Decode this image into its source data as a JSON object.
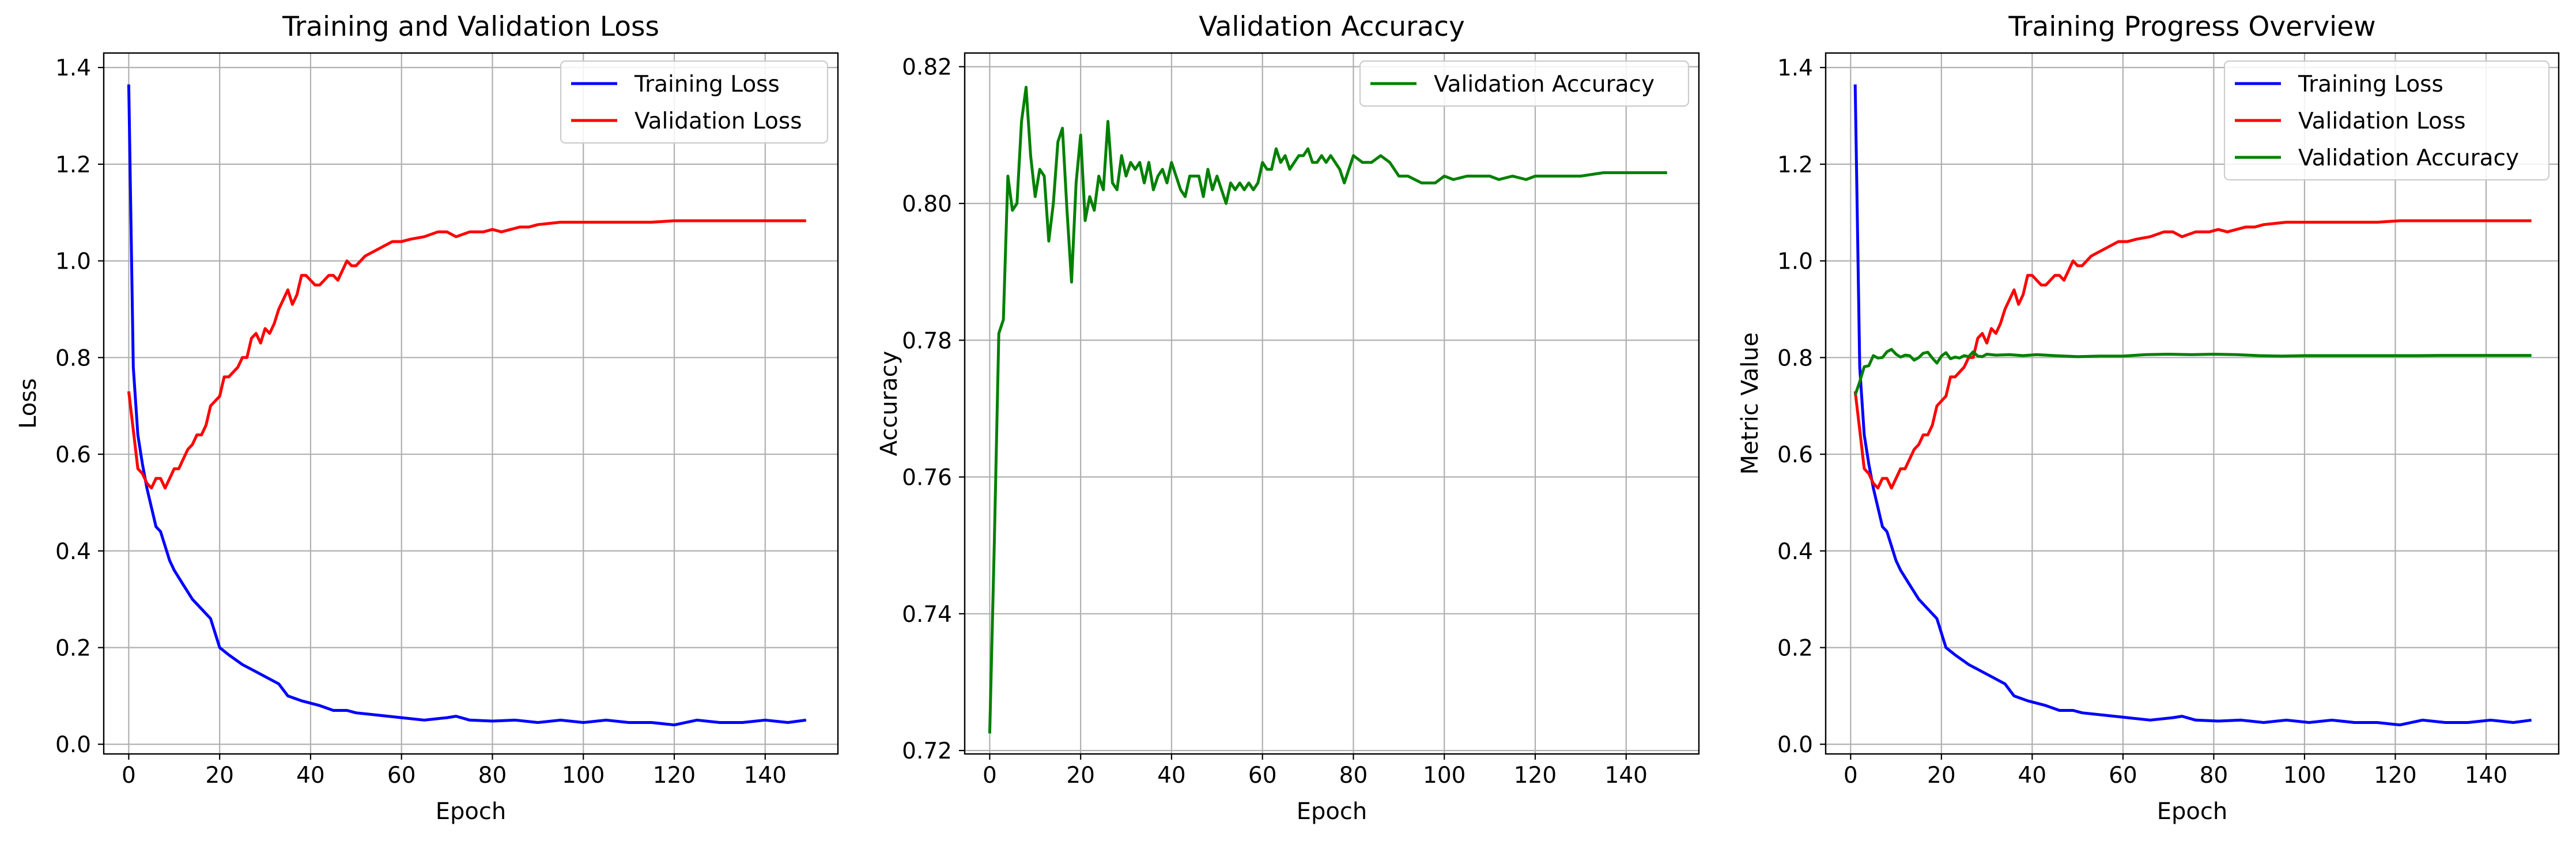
{
  "chart_data": [
    {
      "type": "line",
      "title": "Training and Validation Loss",
      "xlabel": "Epoch",
      "ylabel": "Loss",
      "xlim": [
        -5.5,
        156
      ],
      "ylim": [
        -0.02,
        1.43
      ],
      "xticks": [
        0,
        20,
        40,
        60,
        80,
        100,
        120,
        140
      ],
      "yticks": [
        0.0,
        0.2,
        0.4,
        0.6,
        0.8,
        1.0,
        1.2,
        1.4
      ],
      "tick_decimals": 1,
      "grid": true,
      "legend": "upper right",
      "series": [
        {
          "name": "Training Loss",
          "color": "#0000ff",
          "x": [
            0,
            1,
            2,
            3,
            4,
            5,
            6,
            7,
            8,
            9,
            10,
            12,
            14,
            16,
            18,
            20,
            22,
            25,
            28,
            30,
            33,
            35,
            38,
            40,
            42,
            45,
            48,
            50,
            55,
            60,
            65,
            70,
            72,
            75,
            80,
            85,
            90,
            95,
            100,
            105,
            110,
            115,
            120,
            125,
            130,
            135,
            140,
            145,
            149
          ],
          "y": [
            1.365,
            0.78,
            0.64,
            0.58,
            0.53,
            0.49,
            0.45,
            0.44,
            0.41,
            0.38,
            0.36,
            0.33,
            0.3,
            0.28,
            0.26,
            0.2,
            0.185,
            0.165,
            0.15,
            0.14,
            0.125,
            0.1,
            0.09,
            0.085,
            0.08,
            0.07,
            0.07,
            0.065,
            0.06,
            0.055,
            0.05,
            0.055,
            0.058,
            0.05,
            0.048,
            0.05,
            0.045,
            0.05,
            0.045,
            0.05,
            0.045,
            0.045,
            0.04,
            0.05,
            0.045,
            0.045,
            0.05,
            0.045,
            0.05
          ]
        },
        {
          "name": "Validation Loss",
          "color": "#ff0000",
          "x": [
            0,
            1,
            2,
            3,
            4,
            5,
            6,
            7,
            8,
            9,
            10,
            11,
            12,
            13,
            14,
            15,
            16,
            17,
            18,
            19,
            20,
            21,
            22,
            23,
            24,
            25,
            26,
            27,
            28,
            29,
            30,
            31,
            32,
            33,
            34,
            35,
            36,
            37,
            38,
            39,
            40,
            41,
            42,
            43,
            44,
            45,
            46,
            47,
            48,
            49,
            50,
            52,
            54,
            56,
            58,
            60,
            62,
            65,
            68,
            70,
            72,
            75,
            78,
            80,
            82,
            84,
            86,
            88,
            90,
            95,
            100,
            105,
            110,
            115,
            120,
            125,
            130,
            135,
            140,
            145,
            149
          ],
          "y": [
            0.73,
            0.65,
            0.57,
            0.56,
            0.54,
            0.53,
            0.55,
            0.55,
            0.53,
            0.55,
            0.57,
            0.57,
            0.59,
            0.61,
            0.62,
            0.64,
            0.64,
            0.66,
            0.7,
            0.71,
            0.72,
            0.76,
            0.76,
            0.77,
            0.78,
            0.8,
            0.8,
            0.84,
            0.85,
            0.83,
            0.86,
            0.85,
            0.87,
            0.9,
            0.92,
            0.94,
            0.91,
            0.93,
            0.97,
            0.97,
            0.96,
            0.95,
            0.95,
            0.96,
            0.97,
            0.97,
            0.96,
            0.98,
            1.0,
            0.99,
            0.99,
            1.01,
            1.02,
            1.03,
            1.04,
            1.04,
            1.045,
            1.05,
            1.06,
            1.06,
            1.05,
            1.06,
            1.06,
            1.065,
            1.06,
            1.065,
            1.07,
            1.07,
            1.075,
            1.08,
            1.08,
            1.08,
            1.08,
            1.08,
            1.083,
            1.083,
            1.083,
            1.083,
            1.083,
            1.083,
            1.083
          ]
        }
      ]
    },
    {
      "type": "line",
      "title": "Validation Accuracy",
      "xlabel": "Epoch",
      "ylabel": "Accuracy",
      "xlim": [
        -5.5,
        156
      ],
      "ylim": [
        0.7195,
        0.822
      ],
      "xticks": [
        0,
        20,
        40,
        60,
        80,
        100,
        120,
        140
      ],
      "yticks": [
        0.72,
        0.74,
        0.76,
        0.78,
        0.8,
        0.82
      ],
      "tick_decimals": 2,
      "grid": true,
      "legend": "upper right",
      "series": [
        {
          "name": "Validation Accuracy",
          "color": "#008000",
          "x": [
            0,
            1,
            2,
            3,
            4,
            5,
            6,
            7,
            8,
            9,
            10,
            11,
            12,
            13,
            14,
            15,
            16,
            17,
            18,
            19,
            20,
            21,
            22,
            23,
            24,
            25,
            26,
            27,
            28,
            29,
            30,
            31,
            32,
            33,
            34,
            35,
            36,
            37,
            38,
            39,
            40,
            41,
            42,
            43,
            44,
            45,
            46,
            47,
            48,
            49,
            50,
            51,
            52,
            53,
            54,
            55,
            56,
            57,
            58,
            59,
            60,
            61,
            62,
            63,
            64,
            65,
            66,
            67,
            68,
            69,
            70,
            71,
            72,
            73,
            74,
            75,
            76,
            77,
            78,
            79,
            80,
            82,
            84,
            86,
            88,
            90,
            92,
            95,
            98,
            100,
            102,
            105,
            108,
            110,
            112,
            115,
            118,
            120,
            125,
            130,
            135,
            140,
            145,
            149
          ],
          "y": [
            0.7225,
            0.75,
            0.781,
            0.783,
            0.804,
            0.799,
            0.8,
            0.812,
            0.817,
            0.807,
            0.801,
            0.805,
            0.804,
            0.7945,
            0.8,
            0.809,
            0.811,
            0.799,
            0.7885,
            0.803,
            0.81,
            0.7975,
            0.801,
            0.799,
            0.804,
            0.802,
            0.812,
            0.803,
            0.802,
            0.807,
            0.804,
            0.806,
            0.805,
            0.806,
            0.803,
            0.806,
            0.802,
            0.804,
            0.805,
            0.803,
            0.806,
            0.804,
            0.802,
            0.801,
            0.804,
            0.804,
            0.804,
            0.801,
            0.805,
            0.802,
            0.804,
            0.802,
            0.8,
            0.803,
            0.802,
            0.803,
            0.802,
            0.803,
            0.802,
            0.803,
            0.806,
            0.805,
            0.805,
            0.808,
            0.806,
            0.807,
            0.805,
            0.806,
            0.807,
            0.807,
            0.808,
            0.806,
            0.806,
            0.807,
            0.806,
            0.807,
            0.806,
            0.805,
            0.803,
            0.805,
            0.807,
            0.806,
            0.806,
            0.807,
            0.806,
            0.804,
            0.804,
            0.803,
            0.803,
            0.804,
            0.8035,
            0.804,
            0.804,
            0.804,
            0.8035,
            0.804,
            0.8035,
            0.804,
            0.804,
            0.804,
            0.8045,
            0.8045,
            0.8045,
            0.8045
          ]
        }
      ]
    },
    {
      "type": "line",
      "title": "Training Progress Overview",
      "xlabel": "Epoch",
      "ylabel": "Metric Value",
      "xlim": [
        -5.5,
        156
      ],
      "ylim": [
        -0.02,
        1.43
      ],
      "xticks": [
        0,
        20,
        40,
        60,
        80,
        100,
        120,
        140
      ],
      "yticks": [
        0.0,
        0.2,
        0.4,
        0.6,
        0.8,
        1.0,
        1.2,
        1.4
      ],
      "tick_decimals": 1,
      "grid": true,
      "legend": "upper right",
      "series": [
        {
          "name": "Training Loss",
          "color": "#0000ff",
          "x": [
            1,
            2,
            3,
            4,
            5,
            6,
            7,
            8,
            9,
            10,
            11,
            13,
            15,
            17,
            19,
            21,
            23,
            26,
            29,
            31,
            34,
            36,
            39,
            41,
            43,
            46,
            49,
            51,
            56,
            61,
            66,
            71,
            73,
            76,
            81,
            86,
            91,
            96,
            101,
            106,
            111,
            116,
            121,
            126,
            131,
            136,
            141,
            146,
            150
          ],
          "y": [
            1.365,
            0.78,
            0.64,
            0.58,
            0.53,
            0.49,
            0.45,
            0.44,
            0.41,
            0.38,
            0.36,
            0.33,
            0.3,
            0.28,
            0.26,
            0.2,
            0.185,
            0.165,
            0.15,
            0.14,
            0.125,
            0.1,
            0.09,
            0.085,
            0.08,
            0.07,
            0.07,
            0.065,
            0.06,
            0.055,
            0.05,
            0.055,
            0.058,
            0.05,
            0.048,
            0.05,
            0.045,
            0.05,
            0.045,
            0.05,
            0.045,
            0.045,
            0.04,
            0.05,
            0.045,
            0.045,
            0.05,
            0.045,
            0.05
          ]
        },
        {
          "name": "Validation Loss",
          "color": "#ff0000",
          "x": [
            1,
            2,
            3,
            4,
            5,
            6,
            7,
            8,
            9,
            10,
            11,
            12,
            13,
            14,
            15,
            16,
            17,
            18,
            19,
            20,
            21,
            22,
            23,
            24,
            25,
            26,
            27,
            28,
            29,
            30,
            31,
            32,
            33,
            34,
            35,
            36,
            37,
            38,
            39,
            40,
            41,
            42,
            43,
            44,
            45,
            46,
            47,
            48,
            49,
            50,
            51,
            53,
            55,
            57,
            59,
            61,
            63,
            66,
            69,
            71,
            73,
            76,
            79,
            81,
            83,
            85,
            87,
            89,
            91,
            96,
            101,
            106,
            111,
            116,
            121,
            126,
            131,
            136,
            141,
            146,
            150
          ],
          "y": [
            0.73,
            0.65,
            0.57,
            0.56,
            0.54,
            0.53,
            0.55,
            0.55,
            0.53,
            0.55,
            0.57,
            0.57,
            0.59,
            0.61,
            0.62,
            0.64,
            0.64,
            0.66,
            0.7,
            0.71,
            0.72,
            0.76,
            0.76,
            0.77,
            0.78,
            0.8,
            0.8,
            0.84,
            0.85,
            0.83,
            0.86,
            0.85,
            0.87,
            0.9,
            0.92,
            0.94,
            0.91,
            0.93,
            0.97,
            0.97,
            0.96,
            0.95,
            0.95,
            0.96,
            0.97,
            0.97,
            0.96,
            0.98,
            1.0,
            0.99,
            0.99,
            1.01,
            1.02,
            1.03,
            1.04,
            1.04,
            1.045,
            1.05,
            1.06,
            1.06,
            1.05,
            1.06,
            1.06,
            1.065,
            1.06,
            1.065,
            1.07,
            1.07,
            1.075,
            1.08,
            1.08,
            1.08,
            1.08,
            1.08,
            1.083,
            1.083,
            1.083,
            1.083,
            1.083,
            1.083,
            1.083
          ]
        },
        {
          "name": "Validation Accuracy",
          "color": "#008000",
          "x": [
            1,
            2,
            3,
            4,
            5,
            6,
            7,
            8,
            9,
            10,
            11,
            12,
            13,
            14,
            15,
            16,
            17,
            18,
            19,
            20,
            21,
            22,
            23,
            24,
            25,
            26,
            27,
            28,
            29,
            30,
            32,
            35,
            38,
            41,
            45,
            50,
            55,
            60,
            65,
            70,
            75,
            80,
            85,
            90,
            95,
            100,
            105,
            110,
            115,
            120,
            125,
            130,
            135,
            140,
            145,
            150
          ],
          "y": [
            0.7225,
            0.75,
            0.781,
            0.783,
            0.804,
            0.799,
            0.8,
            0.812,
            0.817,
            0.807,
            0.801,
            0.805,
            0.804,
            0.7945,
            0.8,
            0.809,
            0.811,
            0.799,
            0.7885,
            0.803,
            0.81,
            0.7975,
            0.801,
            0.799,
            0.804,
            0.802,
            0.812,
            0.803,
            0.802,
            0.807,
            0.805,
            0.806,
            0.804,
            0.806,
            0.804,
            0.802,
            0.803,
            0.803,
            0.806,
            0.807,
            0.806,
            0.807,
            0.806,
            0.804,
            0.803,
            0.804,
            0.804,
            0.804,
            0.804,
            0.804,
            0.804,
            0.8045,
            0.8045,
            0.8045,
            0.8045,
            0.8045
          ]
        }
      ]
    }
  ]
}
